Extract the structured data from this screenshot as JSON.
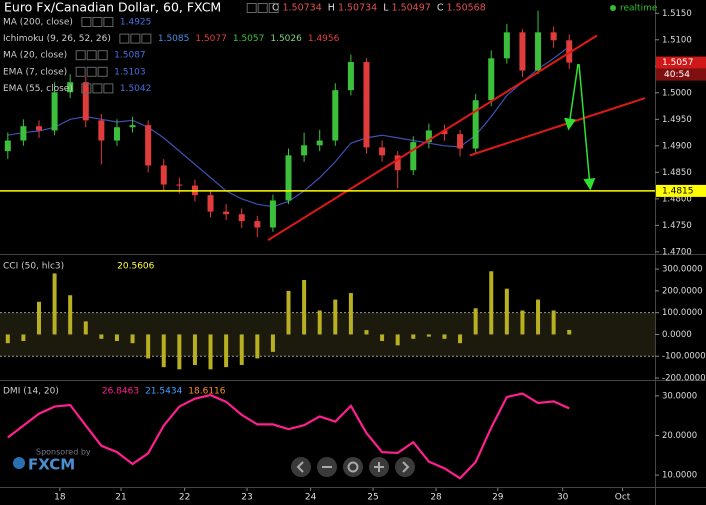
{
  "ui": {
    "realtime": "realtime",
    "countdown": "40:54",
    "sponsor": "Sponsored by",
    "brand": "FXCM"
  },
  "chart_data": [
    {
      "type": "candlestick",
      "title": "Euro Fx/Canadian Dollar, 60, FXCM",
      "last_bar": [
        {
          "label": "O",
          "value": 1.50734
        },
        {
          "label": "H",
          "value": 1.50734
        },
        {
          "label": "L",
          "value": 1.50497
        },
        {
          "label": "C",
          "value": 1.50568
        }
      ],
      "indicators": [
        {
          "name": "MA (200, close)",
          "values": [
            1.4925
          ],
          "colors": [
            "#4a6fe0"
          ]
        },
        {
          "name": "Ichimoku (9, 26, 52, 26)",
          "values": [
            1.5085,
            1.5077,
            1.5057,
            1.5026,
            1.4956
          ],
          "colors": [
            "#4a8fe0",
            "#e04040",
            "#40c040",
            "#7fd27f",
            "#e04040"
          ]
        },
        {
          "name": "MA (20, close)",
          "values": [
            1.5087
          ],
          "colors": [
            "#4a6fe0"
          ]
        },
        {
          "name": "EMA (7, close)",
          "values": [
            1.5103
          ],
          "colors": [
            "#4a6fe0"
          ]
        },
        {
          "name": "EMA (55, close)",
          "values": [
            1.5042
          ],
          "colors": [
            "#4a6fe0"
          ]
        }
      ],
      "x": [
        0.125,
        0.375,
        0.625,
        0.875,
        1.125,
        1.375,
        1.625,
        1.875,
        2.125,
        2.375,
        2.625,
        2.875,
        3.125,
        3.375,
        3.625,
        3.875,
        4.125,
        4.375,
        4.625,
        4.875,
        5.125,
        5.375,
        5.625,
        5.875,
        6.125,
        6.375,
        6.625,
        6.875,
        7.125,
        7.375,
        7.625,
        7.875,
        8.125,
        8.375,
        8.625,
        8.875,
        9.125
      ],
      "open": [
        1.489,
        1.491,
        1.4937,
        1.4929,
        1.5001,
        1.502,
        1.4948,
        1.491,
        1.4935,
        1.4939,
        1.4863,
        1.4827,
        1.4825,
        1.4807,
        1.4776,
        1.4771,
        1.4758,
        1.4746,
        1.4797,
        1.4882,
        1.4901,
        1.491,
        1.5005,
        1.5058,
        1.4897,
        1.4882,
        1.4854,
        1.4907,
        1.4929,
        1.4922,
        1.4895,
        1.4986,
        1.5065,
        1.5114,
        1.5042,
        1.5114,
        1.5099
      ],
      "high": [
        1.4925,
        1.495,
        1.4948,
        1.502,
        1.5035,
        1.503,
        1.496,
        1.495,
        1.4955,
        1.4948,
        1.4875,
        1.484,
        1.4836,
        1.4815,
        1.479,
        1.4782,
        1.4768,
        1.4808,
        1.4895,
        1.4925,
        1.493,
        1.5018,
        1.5072,
        1.5065,
        1.491,
        1.489,
        1.4918,
        1.4942,
        1.494,
        1.493,
        1.4998,
        1.508,
        1.513,
        1.512,
        1.5155,
        1.5125,
        1.511
      ],
      "low": [
        1.4875,
        1.49,
        1.4915,
        1.492,
        1.499,
        1.4935,
        1.4865,
        1.49,
        1.4925,
        1.485,
        1.4815,
        1.481,
        1.4795,
        1.4765,
        1.476,
        1.4745,
        1.4728,
        1.4738,
        1.479,
        1.487,
        1.489,
        1.49,
        1.4995,
        1.4885,
        1.487,
        1.482,
        1.4845,
        1.4895,
        1.491,
        1.488,
        1.4885,
        1.4975,
        1.5055,
        1.503,
        1.5035,
        1.5085,
        1.5045
      ],
      "close": [
        1.491,
        1.4937,
        1.4929,
        1.5001,
        1.502,
        1.4948,
        1.491,
        1.4935,
        1.4939,
        1.4863,
        1.4827,
        1.4825,
        1.4807,
        1.4776,
        1.4771,
        1.4758,
        1.4746,
        1.4797,
        1.4882,
        1.4901,
        1.491,
        1.5005,
        1.5058,
        1.4897,
        1.4882,
        1.4854,
        1.4907,
        1.4929,
        1.4922,
        1.4895,
        1.4986,
        1.5065,
        1.5114,
        1.5042,
        1.5114,
        1.5099,
        1.5057
      ],
      "up_color": "#3cc03c",
      "down_color": "#e03c3c",
      "overlays": [
        {
          "color": "#4050b0",
          "values": [
            1.492,
            1.4925,
            1.4928,
            1.4935,
            1.495,
            1.4955,
            1.495,
            1.4945,
            1.4948,
            1.4935,
            1.4915,
            1.489,
            1.4865,
            1.484,
            1.4815,
            1.48,
            1.479,
            1.4785,
            1.4795,
            1.4815,
            1.484,
            1.487,
            1.4905,
            1.4915,
            1.492,
            1.4915,
            1.491,
            1.4905,
            1.49,
            1.4898,
            1.492,
            1.4955,
            1.4995,
            1.502,
            1.5045,
            1.5065,
            1.5087
          ]
        }
      ],
      "trendlines": [
        {
          "color": "#e01818",
          "x": [
            4.296,
            9.57
          ],
          "values": [
            1.4722,
            1.5108
          ]
        },
        {
          "color": "#e01818",
          "x": [
            7.53,
            10.34
          ],
          "values": [
            1.4882,
            1.499
          ]
        }
      ],
      "hline": {
        "value": 1.4815,
        "color": "#ffff00"
      },
      "xlim": [
        0,
        10.5
      ],
      "xticks": [
        {
          "value": 0.96,
          "label": "18"
        },
        {
          "value": 1.94,
          "label": "21"
        },
        {
          "value": 2.96,
          "label": "22"
        },
        {
          "value": 3.96,
          "label": "23"
        },
        {
          "value": 4.98,
          "label": "24"
        },
        {
          "value": 5.98,
          "label": "25"
        },
        {
          "value": 6.99,
          "label": "28"
        },
        {
          "value": 7.98,
          "label": "29"
        },
        {
          "value": 9.02,
          "label": "30"
        },
        {
          "value": 9.98,
          "label": "Oct"
        }
      ],
      "ylim": [
        1.4696,
        1.5175
      ],
      "yticks": [
        {
          "value": 1.47,
          "label": "1.4700"
        },
        {
          "value": 1.475,
          "label": "1.4750"
        },
        {
          "value": 1.48,
          "label": "1.4800"
        },
        {
          "value": 1.485,
          "label": "1.4850"
        },
        {
          "value": 1.49,
          "label": "1.4900"
        },
        {
          "value": 1.495,
          "label": "1.4950"
        },
        {
          "value": 1.5,
          "label": "1.5000"
        },
        {
          "value": 1.505,
          "label": "1.5050"
        },
        {
          "value": 1.51,
          "label": "1.5100"
        },
        {
          "value": 1.515,
          "label": "1.5150"
        }
      ]
    },
    {
      "type": "bar",
      "title": "CCI (50, hlc3)",
      "color": "#b8b020",
      "values": [
        -40,
        -30,
        150,
        280,
        180,
        60,
        -20,
        -30,
        -40,
        -110,
        -150,
        -160,
        -140,
        -160,
        -150,
        -140,
        -110,
        -80,
        200,
        250,
        110,
        160,
        190,
        20,
        -30,
        -50,
        -20,
        -10,
        -20,
        -40,
        120,
        290,
        210,
        110,
        160,
        110,
        20.5606
      ],
      "bands": [
        100,
        -100
      ],
      "ylim": [
        -209,
        360
      ],
      "yticks": [
        {
          "value": 300,
          "label": "300.0000"
        },
        {
          "value": 200,
          "label": "200.0000"
        },
        {
          "value": 100,
          "label": "100.0000"
        },
        {
          "value": 0,
          "label": "0.0000"
        },
        {
          "value": -100,
          "label": "-100.0000"
        },
        {
          "value": -200,
          "label": "-200.0000"
        }
      ]
    },
    {
      "type": "line",
      "title": "DMI (14, 20)",
      "color": "#ff1f8f",
      "values": [
        19.5,
        22.5,
        25.5,
        27.3,
        27.7,
        22.5,
        17.4,
        15.8,
        12.8,
        15.5,
        22.5,
        27.3,
        29.3,
        30.2,
        28.5,
        25.2,
        22.8,
        22.8,
        21.6,
        22.6,
        24.8,
        23.5,
        27.5,
        20.6,
        15.8,
        15.6,
        18.3,
        13.4,
        11.7,
        9.2,
        13.3,
        22,
        29.7,
        30.6,
        28.2,
        28.6,
        26.8463
      ],
      "other_values": [
        21.5434,
        18.6116
      ],
      "other_colors": [
        "#3fa0ff",
        "#ff9020"
      ],
      "ylim": [
        7,
        33.5
      ],
      "yticks": [
        {
          "value": 30,
          "label": "30.0000"
        },
        {
          "value": 20,
          "label": "20.0000"
        },
        {
          "value": 10,
          "label": "10.0000"
        }
      ]
    }
  ]
}
